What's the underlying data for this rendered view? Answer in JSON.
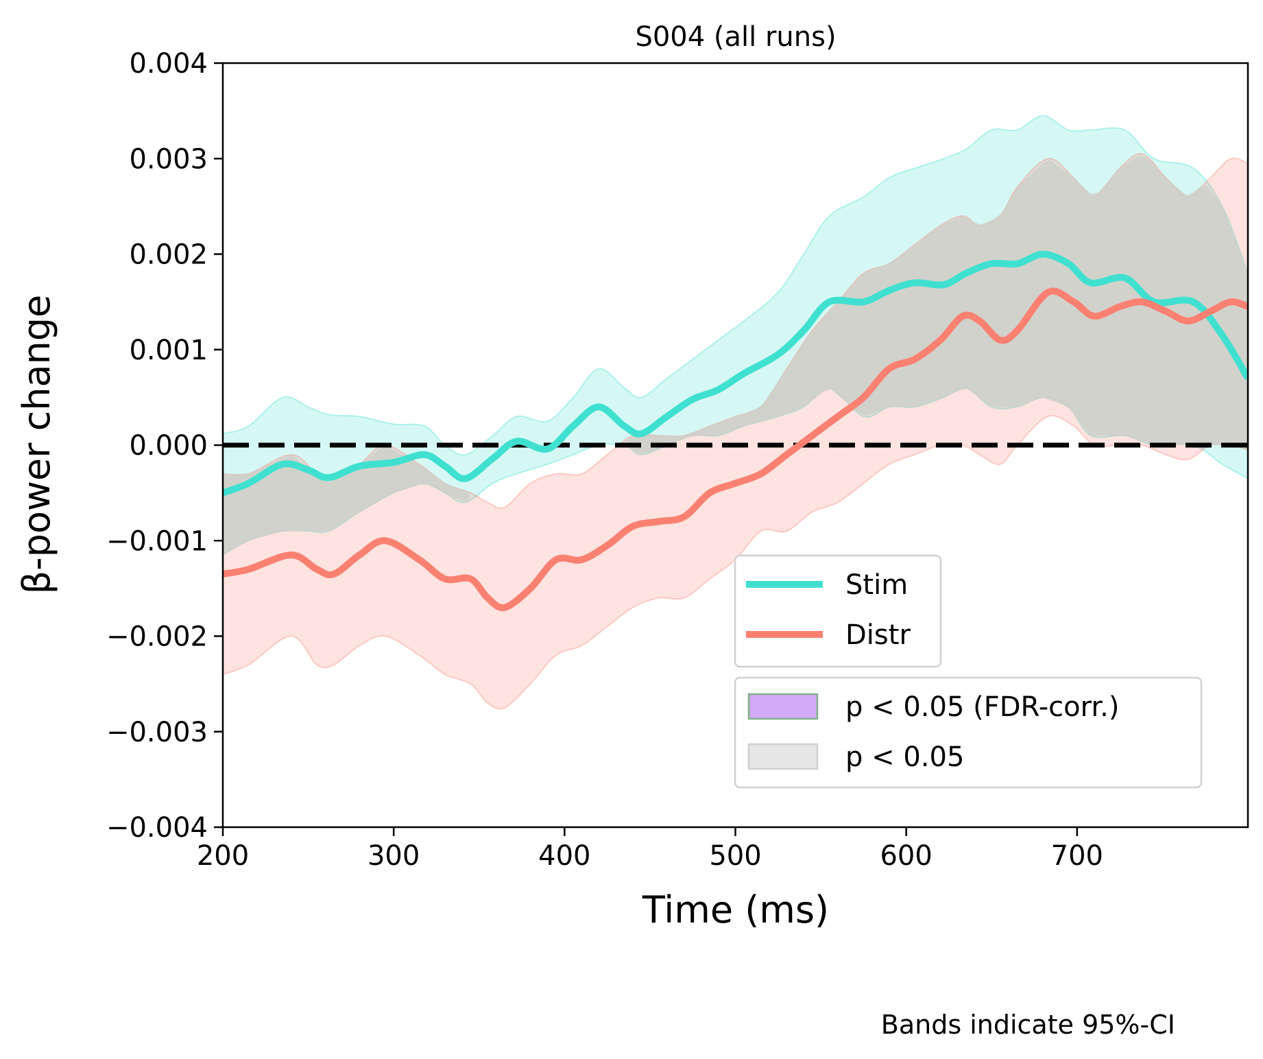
{
  "chart_data": {
    "type": "line",
    "title": "S004 (all runs)",
    "xlabel": "Time (ms)",
    "ylabel": "β-power change",
    "xlim": [
      200,
      800
    ],
    "ylim": [
      -0.004,
      0.004
    ],
    "xticks": [
      200,
      300,
      400,
      500,
      600,
      700
    ],
    "xtick_labels": [
      "200",
      "300",
      "400",
      "500",
      "600",
      "700"
    ],
    "yticks": [
      -0.004,
      -0.003,
      -0.002,
      -0.001,
      0.0,
      0.001,
      0.002,
      0.003,
      0.004
    ],
    "ytick_labels": [
      "−0.004",
      "−0.003",
      "−0.002",
      "−0.001",
      "0.000",
      "0.001",
      "0.002",
      "0.003",
      "0.004"
    ],
    "reference_line": {
      "y": 0.0,
      "style": "dashed",
      "color": "#000000"
    },
    "series": [
      {
        "name": "Stim",
        "color": "#40e0d0",
        "x": [
          200,
          215,
          235,
          250,
          262,
          280,
          300,
          318,
          330,
          342,
          358,
          372,
          390,
          405,
          420,
          435,
          445,
          460,
          475,
          490,
          505,
          525,
          540,
          555,
          575,
          590,
          605,
          622,
          635,
          650,
          665,
          680,
          695,
          708,
          728,
          745,
          768,
          785,
          800
        ],
        "y": [
          -0.0005,
          -0.0004,
          -0.0002,
          -0.00026,
          -0.00034,
          -0.00022,
          -0.00018,
          -0.0001,
          -0.00022,
          -0.00035,
          -0.00014,
          4e-05,
          -4e-05,
          0.0002,
          0.0004,
          0.0002,
          0.00012,
          0.0003,
          0.00048,
          0.00058,
          0.00075,
          0.00095,
          0.0012,
          0.0015,
          0.0015,
          0.00162,
          0.0017,
          0.00168,
          0.0018,
          0.0019,
          0.0019,
          0.002,
          0.0019,
          0.0017,
          0.00175,
          0.0015,
          0.0015,
          0.00115,
          0.0007
        ],
        "ci_lower": [
          -0.00115,
          -0.001,
          -0.0009,
          -0.0009,
          -0.0009,
          -0.0007,
          -0.0005,
          -0.0004,
          -0.0005,
          -0.0006,
          -0.0004,
          -0.0003,
          -0.0002,
          -0.0001,
          0.0,
          0.0,
          -0.0001,
          0.0,
          0.0001,
          0.0001,
          0.0002,
          0.0003,
          0.0004,
          0.0006,
          0.0003,
          0.0004,
          0.0004,
          0.0005,
          0.0006,
          0.0004,
          0.0004,
          0.0005,
          0.0004,
          0.0001,
          0.0001,
          0.0,
          0.0,
          -0.0002,
          -0.00035
        ],
        "ci_upper": [
          0.00012,
          0.0002,
          0.0005,
          0.0004,
          0.00032,
          0.0003,
          0.00022,
          0.0002,
          0.0,
          -0.0001,
          0.0001,
          0.0003,
          0.00025,
          0.0005,
          0.0008,
          0.0006,
          0.0005,
          0.0007,
          0.0009,
          0.0011,
          0.0013,
          0.0016,
          0.002,
          0.0024,
          0.0026,
          0.0028,
          0.0029,
          0.003,
          0.0031,
          0.0033,
          0.0033,
          0.00345,
          0.0033,
          0.0033,
          0.0033,
          0.003,
          0.0029,
          0.0025,
          0.0018
        ]
      },
      {
        "name": "Distr",
        "color": "#fa8072",
        "x": [
          200,
          215,
          240,
          255,
          265,
          280,
          295,
          315,
          330,
          345,
          355,
          365,
          380,
          395,
          410,
          425,
          440,
          455,
          470,
          485,
          500,
          515,
          530,
          545,
          560,
          575,
          590,
          605,
          620,
          633,
          643,
          655,
          665,
          683,
          698,
          710,
          725,
          738,
          752,
          765,
          778,
          790,
          800
        ],
        "y": [
          -0.00135,
          -0.0013,
          -0.00115,
          -0.0013,
          -0.00135,
          -0.00115,
          -0.001,
          -0.0012,
          -0.0014,
          -0.0014,
          -0.0016,
          -0.0017,
          -0.0015,
          -0.0012,
          -0.0012,
          -0.00105,
          -0.00085,
          -0.0008,
          -0.00075,
          -0.0005,
          -0.0004,
          -0.0003,
          -0.0001,
          0.0001,
          0.0003,
          0.0005,
          0.0008,
          0.0009,
          0.0011,
          0.00135,
          0.0013,
          0.0011,
          0.0012,
          0.0016,
          0.0015,
          0.00135,
          0.00145,
          0.0015,
          0.0014,
          0.0013,
          0.0014,
          0.0015,
          0.00145
        ],
        "ci_lower": [
          -0.0024,
          -0.0023,
          -0.002,
          -0.0023,
          -0.0023,
          -0.0021,
          -0.002,
          -0.0022,
          -0.0024,
          -0.0025,
          -0.0027,
          -0.00275,
          -0.0025,
          -0.0022,
          -0.0021,
          -0.0019,
          -0.0017,
          -0.0016,
          -0.0016,
          -0.0014,
          -0.0012,
          -0.0009,
          -0.0009,
          -0.0007,
          -0.0006,
          -0.0004,
          -0.0002,
          -0.0001,
          0.0,
          0.0,
          -0.0001,
          -0.0002,
          0.0,
          0.0003,
          0.0002,
          0.0,
          0.0,
          0.0,
          -0.0001,
          -0.00015,
          0.0,
          0.0,
          -5e-05
        ],
        "ci_upper": [
          -0.0003,
          -0.0003,
          -0.0001,
          -0.0003,
          -0.00035,
          -0.0002,
          0.0,
          -0.0002,
          -0.0004,
          -0.0005,
          -0.0006,
          -0.00065,
          -0.0004,
          -0.0003,
          -0.0003,
          -0.0001,
          0.0001,
          0.0001,
          0.0001,
          0.0002,
          0.0003,
          0.0004,
          0.0008,
          0.0012,
          0.0015,
          0.0018,
          0.0019,
          0.0021,
          0.0023,
          0.0024,
          0.0023,
          0.0024,
          0.0027,
          0.003,
          0.0028,
          0.0026,
          0.0029,
          0.00305,
          0.0028,
          0.0026,
          0.0028,
          0.003,
          0.00295
        ]
      }
    ],
    "legend": {
      "placement": "lower-right",
      "lines": [
        {
          "label": "Stim",
          "color": "#40e0d0"
        },
        {
          "label": "Distr",
          "color": "#fa8072"
        }
      ],
      "patches": [
        {
          "label": "p < 0.05 (FDR-corr.)",
          "color": "#d3aaf5",
          "edge": "#7fb08a"
        },
        {
          "label": "p < 0.05",
          "color": "#e6e6e6",
          "edge": "#cfcfcf"
        }
      ]
    },
    "note": "Bands indicate 95%-CI",
    "grid": false
  }
}
